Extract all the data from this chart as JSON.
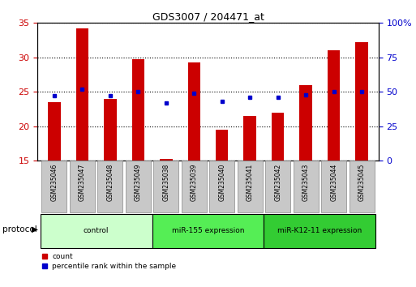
{
  "title": "GDS3007 / 204471_at",
  "samples": [
    "GSM235046",
    "GSM235047",
    "GSM235048",
    "GSM235049",
    "GSM235038",
    "GSM235039",
    "GSM235040",
    "GSM235041",
    "GSM235042",
    "GSM235043",
    "GSM235044",
    "GSM235045"
  ],
  "counts": [
    23.5,
    34.2,
    24.0,
    29.7,
    15.3,
    29.3,
    19.5,
    21.5,
    22.0,
    26.0,
    31.0,
    32.2
  ],
  "percentile_ranks": [
    47,
    52,
    47,
    50,
    42,
    49,
    43,
    46,
    46,
    48,
    50,
    50
  ],
  "ylim_left": [
    15,
    35
  ],
  "ylim_right": [
    0,
    100
  ],
  "yticks_left": [
    15,
    20,
    25,
    30,
    35
  ],
  "yticks_right": [
    0,
    25,
    50,
    75,
    100
  ],
  "bar_color": "#cc0000",
  "dot_color": "#0000cc",
  "bar_width": 0.45,
  "groups": [
    {
      "label": "control",
      "start": 0,
      "end": 4,
      "color": "#ccffcc"
    },
    {
      "label": "miR-155 expression",
      "start": 4,
      "end": 8,
      "color": "#55ee55"
    },
    {
      "label": "miR-K12-11 expression",
      "start": 8,
      "end": 12,
      "color": "#33cc33"
    }
  ],
  "protocol_label": "protocol",
  "left_axis_color": "#cc0000",
  "right_axis_color": "#0000cc",
  "grid_linestyle": "dotted",
  "background_color": "#ffffff",
  "tick_label_bg": "#c8c8c8"
}
